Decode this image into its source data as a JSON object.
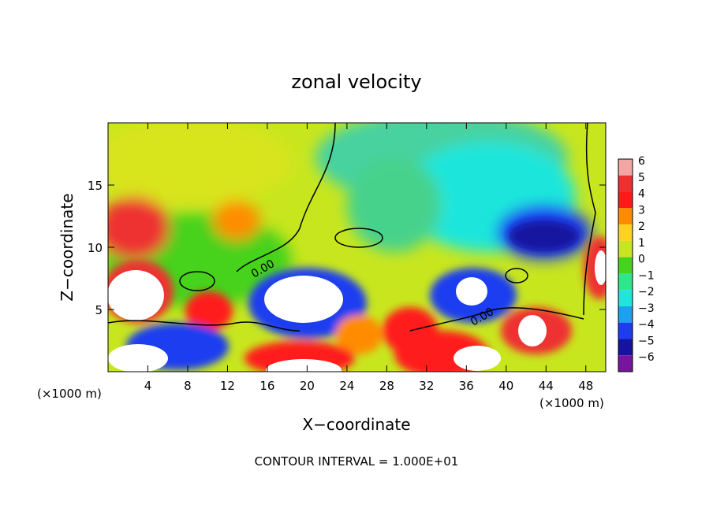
{
  "chart_data": {
    "type": "heatmap",
    "title": "zonal velocity",
    "xlabel": "X−coordinate",
    "ylabel": "Z−coordinate",
    "x_unit_label": "(×1000 m)",
    "x_unit_label_right": "(×1000 m)",
    "xlim": [
      0,
      50
    ],
    "ylim": [
      0,
      20
    ],
    "x_ticks": [
      4,
      8,
      12,
      16,
      20,
      24,
      28,
      32,
      36,
      40,
      44,
      48
    ],
    "y_ticks": [
      5,
      10,
      15
    ],
    "colorbar": {
      "levels": [
        6,
        5,
        4,
        3,
        2,
        1,
        0,
        -1,
        -2,
        -3,
        -4,
        -5,
        -6
      ],
      "level_labels": [
        "6",
        "5",
        "4",
        "3",
        "2",
        "1",
        "0",
        "−1",
        "−2",
        "−3",
        "−4",
        "−5",
        "−6"
      ],
      "colors": [
        "#f4a6a6",
        "#ee3030",
        "#ff1a1a",
        "#ff8c00",
        "#ffd21f",
        "#c8e61e",
        "#46d21e",
        "#2ee68c",
        "#1ee6dc",
        "#1ea0f0",
        "#1e3cf0",
        "#1414a0",
        "#7814a0"
      ]
    },
    "contour_label": "0.00",
    "contour_interval_text": "CONTOUR INTERVAL = 1.000E+01"
  }
}
